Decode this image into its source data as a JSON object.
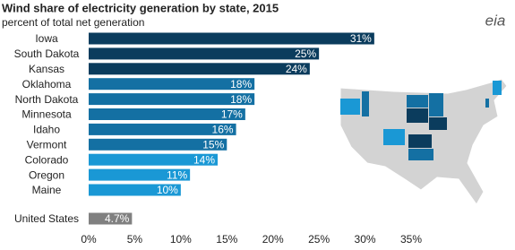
{
  "chart_data": {
    "type": "bar",
    "orientation": "horizontal",
    "title": "Wind share of electricity generation by state, 2015",
    "subtitle": "percent of total net generation",
    "logo": "eia",
    "categories": [
      "Iowa",
      "South Dakota",
      "Kansas",
      "Oklahoma",
      "North Dakota",
      "Minnesota",
      "Idaho",
      "Vermont",
      "Colorado",
      "Oregon",
      "Maine",
      "United States"
    ],
    "values": [
      31,
      25,
      24,
      18,
      18,
      17,
      16,
      15,
      14,
      11,
      10,
      4.7
    ],
    "value_labels": [
      "31%",
      "25%",
      "24%",
      "18%",
      "18%",
      "17%",
      "16%",
      "15%",
      "14%",
      "11%",
      "10%",
      "4.7%"
    ],
    "colors": [
      "#0b3c5d",
      "#0b3c5d",
      "#0b3c5d",
      "#1470a3",
      "#1470a3",
      "#1470a3",
      "#1470a3",
      "#1470a3",
      "#1a98d5",
      "#1a98d5",
      "#1a98d5",
      "#808080"
    ],
    "xlim": [
      0,
      35
    ],
    "xticks": [
      {
        "value": 0,
        "label": "0%"
      },
      {
        "value": 5,
        "label": "5%"
      },
      {
        "value": 10,
        "label": "10%"
      },
      {
        "value": 15,
        "label": "15%"
      },
      {
        "value": 20,
        "label": "20%"
      },
      {
        "value": 25,
        "label": "25%"
      },
      {
        "value": 30,
        "label": "30%"
      },
      {
        "value": 35,
        "label": "35%"
      }
    ],
    "grid": false
  }
}
